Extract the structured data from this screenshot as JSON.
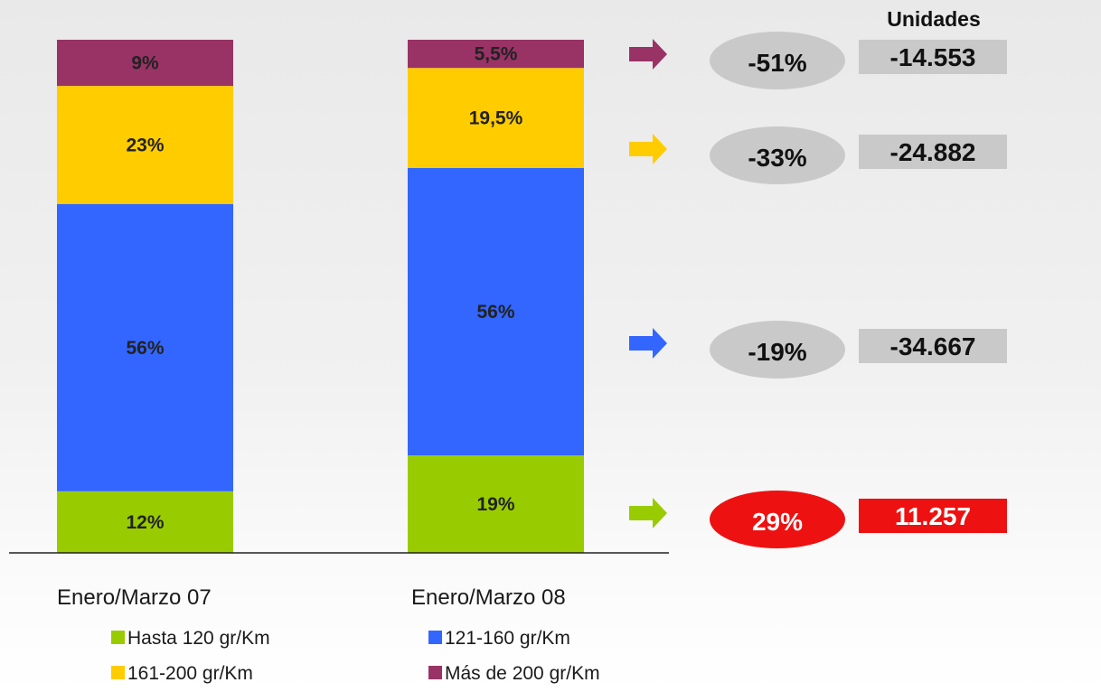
{
  "chart_data": {
    "type": "bar",
    "stacked": true,
    "categories": [
      "Enero/Marzo 07",
      "Enero/Marzo 08"
    ],
    "series": [
      {
        "name": "Hasta 120 gr/Km",
        "color": "#99cc00",
        "values": [
          12,
          19
        ],
        "labels": [
          "12%",
          "19%"
        ]
      },
      {
        "name": "121-160 gr/Km",
        "color": "#3366ff",
        "values": [
          56,
          56
        ],
        "labels": [
          "56%",
          "56%"
        ]
      },
      {
        "name": "161-200 gr/Km",
        "color": "#ffcc00",
        "values": [
          23,
          19.5
        ],
        "labels": [
          "23%",
          "19,5%"
        ]
      },
      {
        "name": "Más de 200 gr/Km",
        "color": "#993366",
        "values": [
          9,
          5.5
        ],
        "labels": [
          "9%",
          "5,5%"
        ]
      }
    ],
    "legend": [
      {
        "name": "Hasta 120 gr/Km",
        "color": "#99cc00"
      },
      {
        "name": "121-160 gr/Km",
        "color": "#3366ff"
      },
      {
        "name": "161-200 gr/Km",
        "color": "#ffcc00"
      },
      {
        "name": "Más de 200 gr/Km",
        "color": "#993366"
      }
    ],
    "legend_position": "bottom",
    "grid": false,
    "annotations": {
      "units_header": "Unidades",
      "rows": [
        {
          "series": "Más de 200 gr/Km",
          "arrow_color": "#993366",
          "change": "-51%",
          "units": "-14.553",
          "highlight": false
        },
        {
          "series": "161-200 gr/Km",
          "arrow_color": "#ffcc00",
          "change": "-33%",
          "units": "-24.882",
          "highlight": false
        },
        {
          "series": "121-160 gr/Km",
          "arrow_color": "#3366ff",
          "change": "-19%",
          "units": "-34.667",
          "highlight": false
        },
        {
          "series": "Hasta 120 gr/Km",
          "arrow_color": "#99cc00",
          "change": "29%",
          "units": "11.257",
          "highlight": true
        }
      ]
    }
  }
}
